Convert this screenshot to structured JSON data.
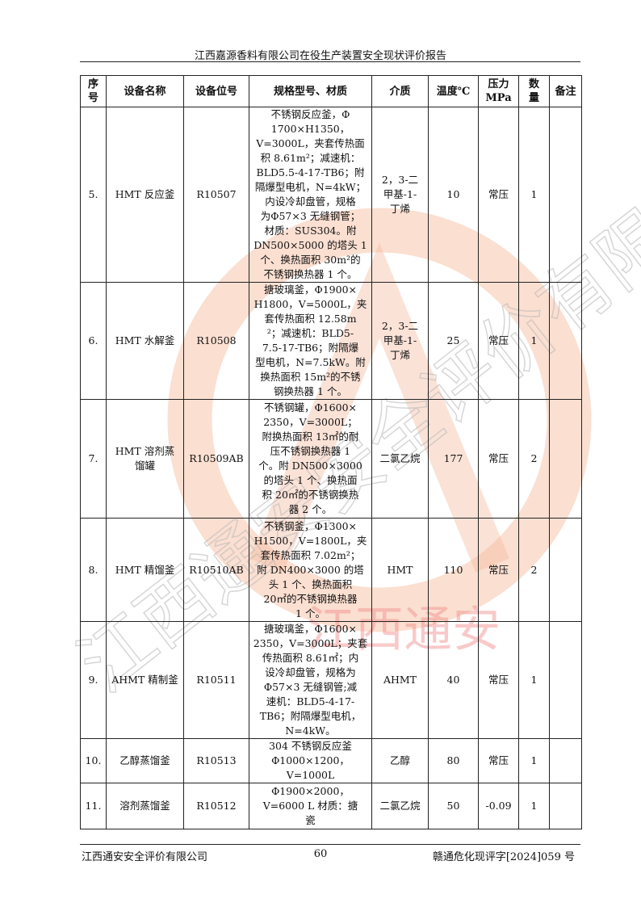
{
  "header": {
    "title": "江西嘉源香料有限公司在役生产装置安全现状评价报告"
  },
  "table": {
    "columns": [
      "序\n号",
      "设备名称",
      "设备位号",
      "规格型号、材质",
      "介质",
      "温度℃",
      "压力\nMPa",
      "数\n量",
      "备注"
    ],
    "rows": [
      {
        "no": "5.",
        "name": "HMT 反应釜",
        "tag": "R10507",
        "spec": "不锈钢反应釜，Φ\n1700×H1350，\nV=3000L，夹套传热面\n积 8.61m²；减速机：\nBLD5.5-4-17-TB6；附\n隔爆型电机，N=4kW；\n内设冷却盘管，规格\n为Φ57×3 无缝钢管；\n材质：SUS304。附\nDN500×5000 的塔头 1\n个、换热面积 30m²的\n不锈钢换热器 1 个。",
        "medium": "2，3-二\n甲基-1-\n丁烯",
        "temp": "10",
        "pressure": "常压",
        "qty": "1",
        "note": ""
      },
      {
        "no": "6.",
        "name": "HMT 水解釜",
        "tag": "R10508",
        "spec": "搪玻璃釜，Φ1900×\nH1800，V=5000L，夹\n套传热面积 12.58m\n²；减速机：BLD5-\n7.5-17-TB6；附隔爆\n型电机，N=7.5kW。附\n换热面积 15m²的不锈\n钢换热器 1 个。",
        "medium": "2，3-二\n甲基-1-\n丁烯",
        "temp": "25",
        "pressure": "常压",
        "qty": "1",
        "note": ""
      },
      {
        "no": "7.",
        "name": "HMT 溶剂蒸\n馏罐",
        "tag": "R10509AB",
        "spec": "不锈钢罐，Φ1600×\n2350，V=3000L；\n附换热面积 13㎡的耐\n压不锈钢换热器 1\n个。附 DN500×3000\n的塔头 1 个、换热面\n积 20㎡的不锈钢换热\n器 2 个。",
        "medium": "二氯乙烷",
        "temp": "177",
        "pressure": "常压",
        "qty": "2",
        "note": ""
      },
      {
        "no": "8.",
        "name": "HMT 精馏釜",
        "tag": "R10510AB",
        "spec": "不锈钢釜，Φ1300×\nH1500，V=1800L，夹\n套传热面积 7.02m²；\n附 DN400×3000 的塔\n头 1 个、换热面积\n20㎡的不锈钢换热器\n1 个。",
        "medium": "HMT",
        "temp": "110",
        "pressure": "常压",
        "qty": "2",
        "note": ""
      },
      {
        "no": "9.",
        "name": "AHMT 精制釜",
        "tag": "R10511",
        "spec": "搪玻璃釜，Φ1600×\n2350，V=3000L；夹套\n传热面积 8.61㎡；内\n设冷却盘管，规格为\nΦ57×3 无缝钢管;减\n速机：BLD5-4-17-\nTB6；附隔爆型电机，\nN=4kW。",
        "medium": "AHMT",
        "temp": "40",
        "pressure": "常压",
        "qty": "1",
        "note": ""
      },
      {
        "no": "10.",
        "name": "乙醇蒸馏釜",
        "tag": "R10513",
        "spec": "304 不锈钢反应釜\nΦ1000×1200，\nV=1000L",
        "medium": "乙醇",
        "temp": "80",
        "pressure": "常压",
        "qty": "1",
        "note": ""
      },
      {
        "no": "11.",
        "name": "溶剂蒸馏釜",
        "tag": "R10512",
        "spec": "Φ1900×2000，\nV=6000 L  材质：搪\n瓷",
        "medium": "二氯乙烷",
        "temp": "50",
        "pressure": "-0.09",
        "qty": "1",
        "note": ""
      }
    ]
  },
  "watermark": {
    "text": "江西通安安全评价有限公司",
    "stamp": "江西通安",
    "color": "#f08a5d"
  },
  "footer": {
    "company": "江西通安安全评价有限公司",
    "page": "60",
    "doc_no": "赣通危化现评字[2024]059 号"
  }
}
